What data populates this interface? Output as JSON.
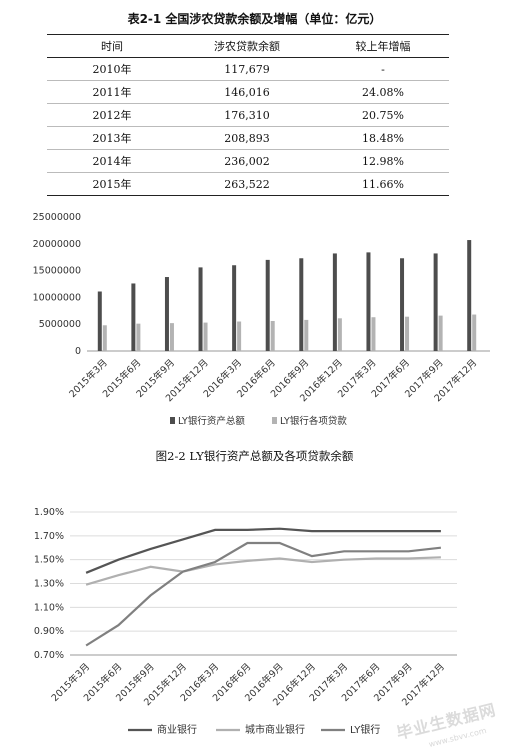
{
  "table": {
    "title": "表2-1  全国涉农贷款余额及增幅（单位：亿元）",
    "headers": [
      "时间",
      "涉农贷款余额",
      "较上年增幅"
    ],
    "rows": [
      [
        "2010年",
        "117,679",
        "-"
      ],
      [
        "2011年",
        "146,016",
        "24.08%"
      ],
      [
        "2012年",
        "176,310",
        "20.75%"
      ],
      [
        "2013年",
        "208,893",
        "18.48%"
      ],
      [
        "2014年",
        "236,002",
        "12.98%"
      ],
      [
        "2015年",
        "263,522",
        "11.66%"
      ]
    ]
  },
  "chart_data": [
    {
      "type": "bar",
      "title": "图2-2 LY银行资产总额及各项贷款余额",
      "categories": [
        "2015年3月",
        "2015年6月",
        "2015年9月",
        "2015年12月",
        "2016年3月",
        "2016年6月",
        "2016年9月",
        "2016年12月",
        "2017年3月",
        "2017年6月",
        "2017年9月",
        "2017年12月"
      ],
      "series": [
        {
          "name": "LY银行资产总额",
          "color": "#4d4d4d",
          "values": [
            11100000,
            12600000,
            13800000,
            15600000,
            16000000,
            17000000,
            17300000,
            18200000,
            18400000,
            17300000,
            18200000,
            20700000
          ]
        },
        {
          "name": "LY银行各项贷款",
          "color": "#b3b3b3",
          "values": [
            4800000,
            5100000,
            5200000,
            5300000,
            5500000,
            5600000,
            5800000,
            6100000,
            6300000,
            6400000,
            6600000,
            6800000
          ]
        }
      ],
      "yticks": [
        "0",
        "5000000",
        "10000000",
        "15000000",
        "20000000",
        "25000000"
      ],
      "ylim": [
        0,
        25000000
      ],
      "legend": "bottom"
    },
    {
      "type": "line",
      "categories": [
        "2015年3月",
        "2015年6月",
        "2015年9月",
        "2015年12月",
        "2016年3月",
        "2016年6月",
        "2016年9月",
        "2016年12月",
        "2017年3月",
        "2017年6月",
        "2017年9月",
        "2017年12月"
      ],
      "series": [
        {
          "name": "商业银行",
          "color": "#555555",
          "values": [
            1.39,
            1.5,
            1.59,
            1.67,
            1.75,
            1.75,
            1.76,
            1.74,
            1.74,
            1.74,
            1.74,
            1.74
          ]
        },
        {
          "name": "城市商业银行",
          "color": "#b0b0b0",
          "values": [
            1.29,
            1.37,
            1.44,
            1.4,
            1.46,
            1.49,
            1.51,
            1.48,
            1.5,
            1.51,
            1.51,
            1.52
          ]
        },
        {
          "name": "LY银行",
          "color": "#808080",
          "values": [
            0.78,
            0.95,
            1.2,
            1.4,
            1.48,
            1.64,
            1.64,
            1.53,
            1.57,
            1.57,
            1.57,
            1.6
          ]
        }
      ],
      "yticks": [
        "0.70%",
        "0.90%",
        "1.10%",
        "1.30%",
        "1.50%",
        "1.70%",
        "1.90%"
      ],
      "ylim": [
        0.7,
        1.9
      ],
      "grid": true,
      "legend": "bottom"
    }
  ],
  "watermark": {
    "main": "毕业生数据网",
    "sub": "www.sbvv.com"
  }
}
